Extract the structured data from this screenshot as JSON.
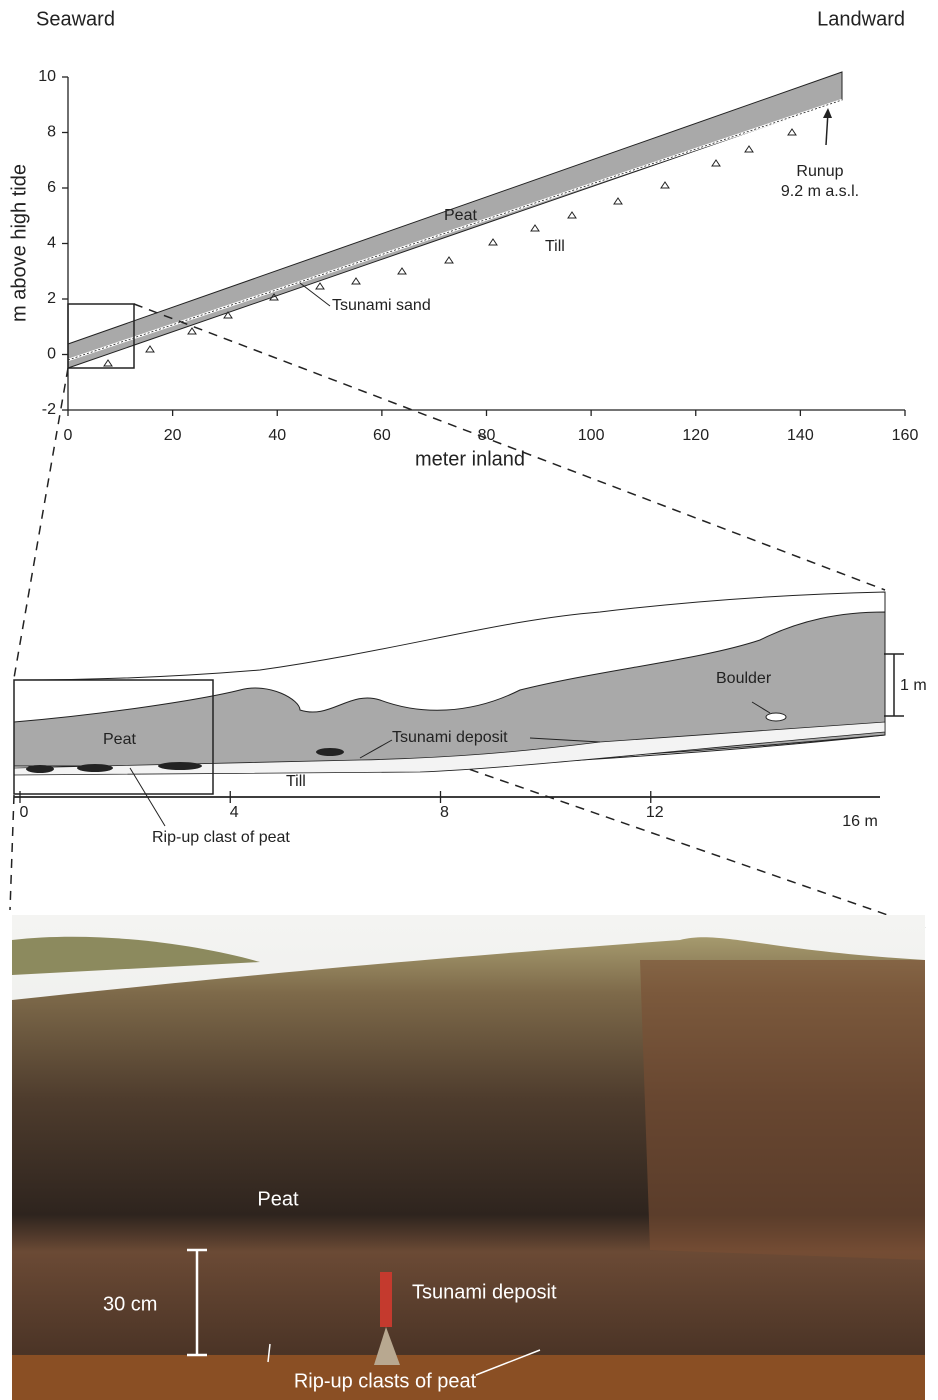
{
  "header": {
    "left": "Seaward",
    "right": "Landward"
  },
  "profile": {
    "y_label": "m above high tide",
    "x_label": "meter inland",
    "xlim": [
      0,
      160
    ],
    "ylim": [
      -2,
      10
    ],
    "xticks": [
      0,
      20,
      40,
      60,
      80,
      100,
      120,
      140,
      160
    ],
    "yticks": [
      -2,
      0,
      2,
      4,
      6,
      8,
      10
    ],
    "labels": {
      "peat": "Peat",
      "till": "Till",
      "tsunami_sand": "Tsunami sand",
      "runup": "Runup",
      "runup_height": "9.2 m a.s.l."
    }
  },
  "section": {
    "xlim": [
      0,
      16
    ],
    "xticks": [
      0,
      4,
      8,
      12
    ],
    "end_label": "16 m",
    "scale_bar": "1 m",
    "labels": {
      "peat": "Peat",
      "till": "Till",
      "tsunami_deposit": "Tsunami deposit",
      "boulder": "Boulder",
      "rip_up": "Rip-up clast of peat"
    }
  },
  "photo": {
    "labels": {
      "peat": "Peat",
      "tsunami_deposit": "Tsunami deposit",
      "thickness": "30 cm",
      "rip_up": "Rip-up clasts of peat"
    }
  }
}
